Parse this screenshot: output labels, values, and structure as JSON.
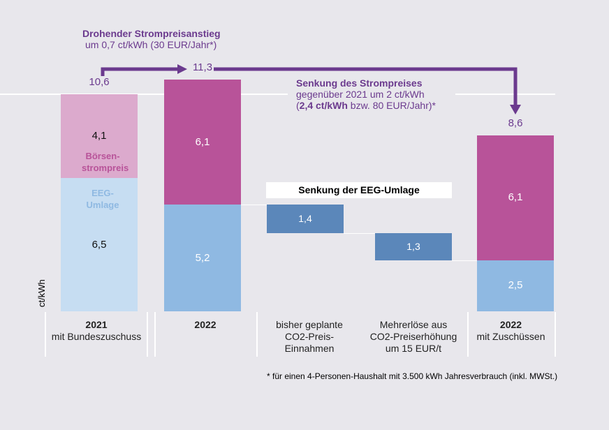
{
  "chart_data": {
    "type": "bar",
    "subtype": "stacked waterfall",
    "ylabel": "ct/kWh",
    "ylim": [
      0,
      11.3
    ],
    "grid": false,
    "categories": [
      {
        "bold": "2021",
        "label": "mit Bundeszuschuss"
      },
      {
        "bold": "2022",
        "label": ""
      },
      {
        "bold": "",
        "label": "bisher geplante CO2-Preis-Einnahmen"
      },
      {
        "bold": "",
        "label": "Mehrerlöse aus CO2-Preiserhöhung um 15 EUR/t"
      },
      {
        "bold": "2022",
        "label": "mit Zuschüssen"
      }
    ],
    "bars": [
      {
        "total": "10,6",
        "segments": [
          {
            "name": "EEG-Umlage",
            "value": 6.5,
            "label": "6,5",
            "color": "#c6ddf2"
          },
          {
            "name": "Börsenstrompreis",
            "value": 4.1,
            "label": "4,1",
            "color": "#dcaacd"
          }
        ]
      },
      {
        "total": "11,3",
        "segments": [
          {
            "value": 5.2,
            "label": "5,2",
            "color": "#8fb9e2"
          },
          {
            "value": 6.1,
            "label": "6,1",
            "color": "#b85399"
          }
        ]
      },
      {
        "floating": [
          3.8,
          5.2
        ],
        "label": "1,4",
        "color": "#5b87ba"
      },
      {
        "floating": [
          2.5,
          3.8
        ],
        "label": "1,3",
        "color": "#5b87ba"
      },
      {
        "total": "8,6",
        "segments": [
          {
            "value": 2.5,
            "label": "2,5",
            "color": "#8fb9e2"
          },
          {
            "value": 6.1,
            "label": "6,1",
            "color": "#b85399"
          }
        ]
      }
    ],
    "segment_legend": {
      "boersen": "Börsen-\nstrompreis",
      "eeg": "EEG-\nUmlage"
    },
    "annotations": {
      "increase_title": "Drohender Strompreisanstieg",
      "increase_sub": "um 0,7 ct/kWh (30 EUR/Jahr*)",
      "decrease_title": "Senkung des Strompreises",
      "decrease_sub1": "gegenüber 2021 um 2 ct/kWh",
      "decrease_sub2_bold": "2,4 ct/kWh",
      "decrease_sub2_rest": " bzw. 80 EUR/Jahr)*",
      "decrease_sub2_open": "(",
      "eeg_box": "Senkung der EEG-Umlage",
      "footnote": "* für einen 4-Personen-Haushalt mit 3.500 kWh Jahresverbrauch (inkl. MWSt.)"
    },
    "colors": {
      "arrow": "#6b3a8e",
      "boersen_text": "#b85399",
      "eeg_text": "#8fb9e2"
    }
  }
}
